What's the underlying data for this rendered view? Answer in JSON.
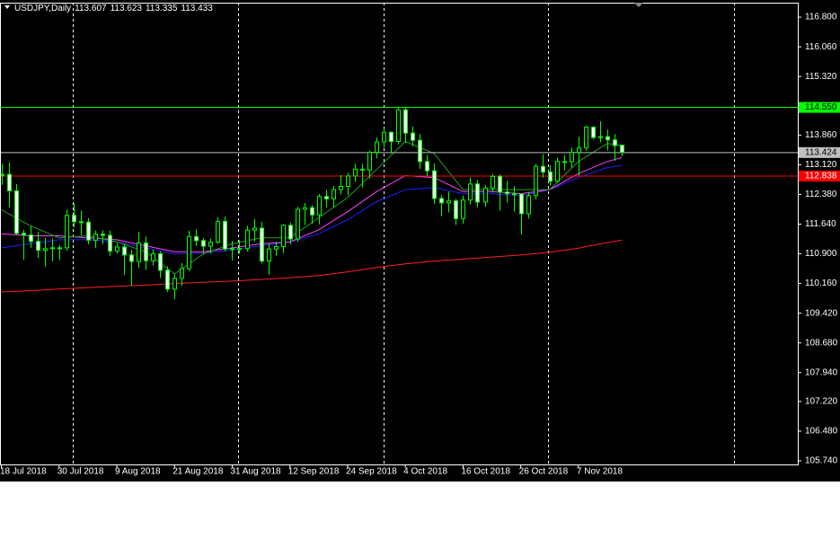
{
  "chart_data": {
    "type": "candlestick",
    "title": "USDJPY,Daily",
    "categories": [
      "18 Jul 2018",
      null,
      null,
      null,
      null,
      null,
      null,
      null,
      "30 Jul 2018",
      null,
      null,
      null,
      null,
      null,
      null,
      null,
      "9 Aug 2018",
      null,
      null,
      null,
      null,
      null,
      null,
      null,
      "21 Aug 2018",
      null,
      null,
      null,
      null,
      null,
      null,
      null,
      "31 Aug 2018",
      null,
      null,
      null,
      null,
      null,
      null,
      null,
      "12 Sep 2018",
      null,
      null,
      null,
      null,
      null,
      null,
      null,
      "24 Sep 2018",
      null,
      null,
      null,
      null,
      null,
      null,
      null,
      "4 Oct 2018",
      null,
      null,
      null,
      null,
      null,
      null,
      null,
      "16 Oct 2018",
      null,
      null,
      null,
      null,
      null,
      null,
      null,
      "26 Oct 2018",
      null,
      null,
      null,
      null,
      null,
      null,
      null,
      "7 Nov 2018",
      null,
      null,
      null,
      null,
      null,
      null
    ],
    "open": [
      112.87,
      112.88,
      112.47,
      111.41,
      111.37,
      111.21,
      110.99,
      111.03,
      111.05,
      111.05,
      111.86,
      111.7,
      111.69,
      111.24,
      111.39,
      111.36,
      110.97,
      111.07,
      110.87,
      110.71,
      111.17,
      110.73,
      110.9,
      110.49,
      110.02,
      110.29,
      110.53,
      111.33,
      111.23,
      111.09,
      111.19,
      111.71,
      111.02,
      111.03,
      111.03,
      111.49,
      111.54,
      110.72,
      111.02,
      111.08,
      111.61,
      111.27,
      112.01,
      112.05,
      111.87,
      112.33,
      112.27,
      112.5,
      112.58,
      112.84,
      113.01,
      112.99,
      113.43,
      113.69,
      113.93,
      113.7,
      114.49,
      113.91,
      113.73,
      113.2,
      112.97,
      112.28,
      112.17,
      112.22,
      111.78,
      112.24,
      112.64,
      112.19,
      112.54,
      112.83,
      112.44,
      112.4,
      112.39,
      111.9,
      112.35,
      113.08,
      112.94,
      112.71,
      113.2,
      113.2,
      113.43,
      113.54,
      114.06,
      113.8,
      113.82,
      113.74,
      113.607
    ],
    "high": [
      113.14,
      113.18,
      112.64,
      111.5,
      111.59,
      111.45,
      111.3,
      111.28,
      111.12,
      112.0,
      112.15,
      111.98,
      111.79,
      111.48,
      111.49,
      111.48,
      111.17,
      111.15,
      111.0,
      111.45,
      111.33,
      111.0,
      110.96,
      110.59,
      110.4,
      110.67,
      111.48,
      111.51,
      111.29,
      111.28,
      111.81,
      111.83,
      111.22,
      111.24,
      111.6,
      111.77,
      111.7,
      111.16,
      111.2,
      111.64,
      111.68,
      112.07,
      112.17,
      112.12,
      112.39,
      112.5,
      112.59,
      112.86,
      112.92,
      113.15,
      113.14,
      113.47,
      113.8,
      114.03,
      113.95,
      114.55,
      114.55,
      114.07,
      113.89,
      113.36,
      113.15,
      112.37,
      112.45,
      112.27,
      112.35,
      112.8,
      112.74,
      112.61,
      112.89,
      112.88,
      112.72,
      112.59,
      112.41,
      112.44,
      113.14,
      113.38,
      113.1,
      113.3,
      113.36,
      113.55,
      113.82,
      114.09,
      114.07,
      114.2,
      114.0,
      113.89,
      113.623
    ],
    "low": [
      112.62,
      112.06,
      111.38,
      110.75,
      111.05,
      110.8,
      110.58,
      110.72,
      110.75,
      110.98,
      111.56,
      111.36,
      111.14,
      111.05,
      111.14,
      110.85,
      110.9,
      110.37,
      110.1,
      110.55,
      110.5,
      110.61,
      110.3,
      109.95,
      109.77,
      110.1,
      110.47,
      111.1,
      110.89,
      110.9,
      111.15,
      110.96,
      110.74,
      110.9,
      110.96,
      111.21,
      110.66,
      110.38,
      110.85,
      110.92,
      111.13,
      111.2,
      111.62,
      111.65,
      111.64,
      112.06,
      112.05,
      112.38,
      112.36,
      112.7,
      112.55,
      112.78,
      113.28,
      113.55,
      113.4,
      113.63,
      113.66,
      113.58,
      113.02,
      112.84,
      112.14,
      111.84,
      111.93,
      111.62,
      111.65,
      112.13,
      112.06,
      112.07,
      112.43,
      111.98,
      112.18,
      111.95,
      111.38,
      111.78,
      112.26,
      112.8,
      112.6,
      112.66,
      112.98,
      113.05,
      112.85,
      113.47,
      113.75,
      113.68,
      113.48,
      113.22,
      113.335
    ],
    "close": [
      112.88,
      112.47,
      111.41,
      111.37,
      111.21,
      110.99,
      111.03,
      111.05,
      111.05,
      111.86,
      111.7,
      111.69,
      111.24,
      111.39,
      111.36,
      110.97,
      111.07,
      110.87,
      110.71,
      111.17,
      110.73,
      110.9,
      110.49,
      110.02,
      110.29,
      110.53,
      111.33,
      111.23,
      111.09,
      111.19,
      111.71,
      111.02,
      111.03,
      111.03,
      111.49,
      111.54,
      110.72,
      111.02,
      111.08,
      111.61,
      111.27,
      112.01,
      112.05,
      111.87,
      112.33,
      112.27,
      112.5,
      112.58,
      112.84,
      113.01,
      112.99,
      113.43,
      113.69,
      113.93,
      113.7,
      114.49,
      113.91,
      113.73,
      113.2,
      112.97,
      112.28,
      112.17,
      112.22,
      111.78,
      112.24,
      112.64,
      112.19,
      112.54,
      112.83,
      112.44,
      112.4,
      112.39,
      111.9,
      112.35,
      113.08,
      112.94,
      112.71,
      113.2,
      113.2,
      113.43,
      113.54,
      114.06,
      113.8,
      113.82,
      113.74,
      113.6,
      113.433
    ],
    "candle_color": "#00ff00",
    "bull_body_color": "#000000",
    "bear_body_color": "#ffffff",
    "overlays": [
      {
        "color": "#ff2020",
        "x": [
          0,
          4,
          8,
          12,
          16,
          20,
          24,
          28,
          32,
          36,
          40,
          44,
          48,
          52,
          56,
          60,
          64,
          68,
          72,
          76,
          80,
          84,
          86
        ],
        "values": [
          109.95,
          109.98,
          110.02,
          110.06,
          110.09,
          110.12,
          110.16,
          110.19,
          110.22,
          110.26,
          110.3,
          110.36,
          110.45,
          110.56,
          110.65,
          110.72,
          110.77,
          110.82,
          110.87,
          110.94,
          111.04,
          111.18,
          111.24
        ]
      },
      {
        "color": "#2020ff",
        "x": [
          0,
          4,
          8,
          12,
          16,
          20,
          24,
          28,
          32,
          36,
          40,
          44,
          48,
          52,
          56,
          60,
          64,
          68,
          72,
          76,
          80,
          84,
          86
        ],
        "values": [
          111.05,
          111.15,
          111.25,
          111.25,
          111.2,
          111.05,
          110.9,
          110.92,
          111.0,
          111.1,
          111.2,
          111.4,
          111.75,
          112.2,
          112.5,
          112.55,
          112.4,
          112.4,
          112.35,
          112.5,
          112.8,
          113.05,
          113.1
        ]
      },
      {
        "color": "#ff40ff",
        "x": [
          0,
          4,
          8,
          12,
          16,
          20,
          24,
          28,
          32,
          36,
          40,
          44,
          48,
          52,
          56,
          60,
          64,
          68,
          72,
          76,
          80,
          84,
          86
        ],
        "values": [
          111.4,
          111.35,
          111.35,
          111.3,
          111.25,
          111.1,
          110.95,
          110.95,
          111.05,
          111.15,
          111.2,
          111.5,
          111.95,
          112.45,
          112.85,
          112.8,
          112.45,
          112.45,
          112.4,
          112.5,
          112.9,
          113.2,
          113.3
        ]
      },
      {
        "color": "#1f9f1f",
        "x": [
          0,
          4,
          8,
          12,
          16,
          20,
          24,
          28,
          32,
          36,
          40,
          44,
          48,
          52,
          56,
          60,
          64,
          68,
          72,
          76,
          80,
          84,
          86
        ],
        "values": [
          112.0,
          111.6,
          111.3,
          111.35,
          111.2,
          110.95,
          110.4,
          110.9,
          111.15,
          111.3,
          111.3,
          111.8,
          112.3,
          113.0,
          113.7,
          113.4,
          112.5,
          112.5,
          112.5,
          112.5,
          113.2,
          113.65,
          113.6
        ]
      }
    ],
    "levels": [
      {
        "value": 114.55,
        "label": "114.550",
        "color": "#00ff00",
        "text_color": "#000000"
      },
      {
        "value": 113.424,
        "label": "113.424",
        "color": "#c0c0c0",
        "text_color": "#000000"
      },
      {
        "value": 112.838,
        "label": "112.838",
        "color": "#ff0000",
        "text_color": "#ffffff"
      }
    ],
    "ylim": [
      105.65,
      117.16
    ],
    "yticks": [
      {
        "value": 116.8,
        "label": "116.800"
      },
      {
        "value": 116.06,
        "label": "116.060"
      },
      {
        "value": 115.32,
        "label": "115.320"
      },
      {
        "value": 113.86,
        "label": "113.860"
      },
      {
        "value": 113.12,
        "label": "113.120"
      },
      {
        "value": 112.38,
        "label": "112.380"
      },
      {
        "value": 111.64,
        "label": "111.640"
      },
      {
        "value": 110.9,
        "label": "110.900"
      },
      {
        "value": 110.16,
        "label": "110.160"
      },
      {
        "value": 109.42,
        "label": "109.420"
      },
      {
        "value": 108.68,
        "label": "108.680"
      },
      {
        "value": 107.94,
        "label": "107.940"
      },
      {
        "value": 107.22,
        "label": "107.220"
      },
      {
        "value": 106.48,
        "label": "106.480"
      },
      {
        "value": 105.74,
        "label": "105.740"
      }
    ]
  }
}
